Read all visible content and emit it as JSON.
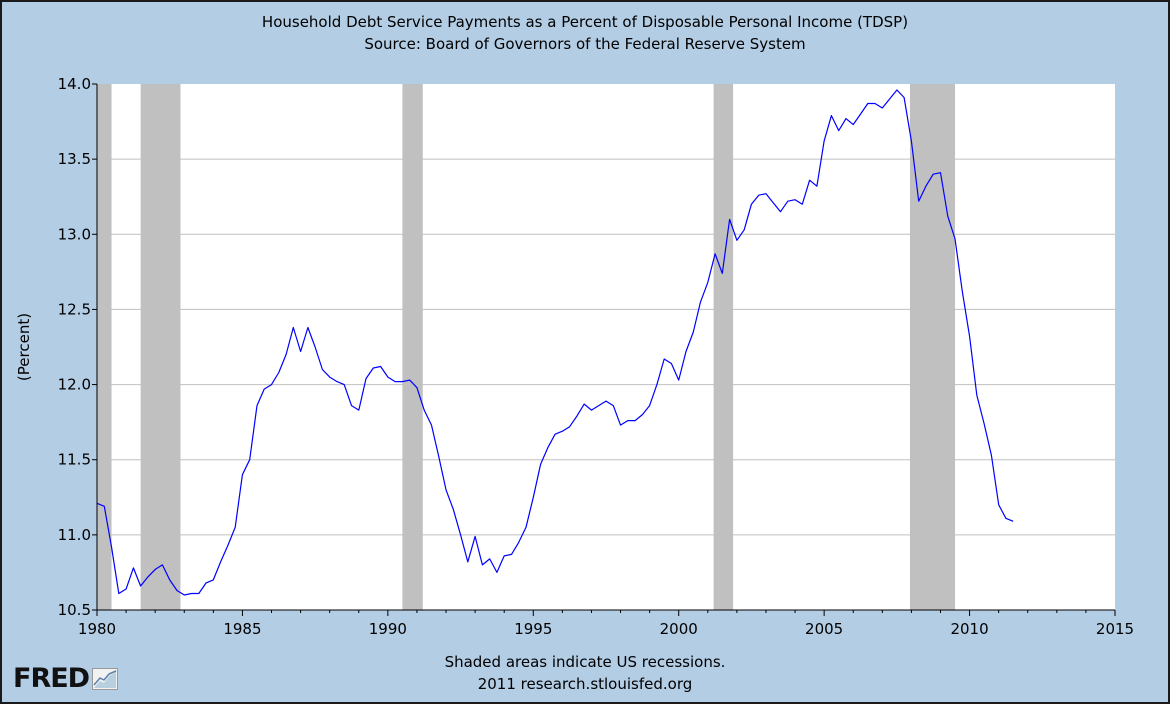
{
  "chart_data": {
    "type": "line",
    "title": "Household Debt Service Payments as a Percent of Disposable Personal Income (TDSP)",
    "subtitle": "Source: Board of Governors of the Federal Reserve System",
    "xlabel": "",
    "ylabel": "(Percent)",
    "xlim": [
      1980,
      2015
    ],
    "ylim": [
      10.5,
      14.0
    ],
    "x_ticks": [
      "1980",
      "1985",
      "1990",
      "1995",
      "2000",
      "2005",
      "2010",
      "2015"
    ],
    "y_ticks": [
      "10.5",
      "11.0",
      "11.5",
      "12.0",
      "12.5",
      "13.0",
      "13.5",
      "14.0"
    ],
    "grid": true,
    "line_color": "#0000ff",
    "grid_color": "#c0c0c0",
    "recession_color": "#c0c0c0",
    "recessions": [
      [
        1980.0,
        1980.5
      ],
      [
        1981.5,
        1982.87
      ],
      [
        1990.5,
        1991.2
      ],
      [
        2001.2,
        2001.87
      ],
      [
        2007.95,
        2009.5
      ]
    ],
    "series": [
      {
        "name": "TDSP",
        "x": [
          1980.0,
          1980.25,
          1980.5,
          1980.75,
          1981.0,
          1981.25,
          1981.5,
          1981.75,
          1982.0,
          1982.25,
          1982.5,
          1982.75,
          1983.0,
          1983.25,
          1983.5,
          1983.75,
          1984.0,
          1984.25,
          1984.5,
          1984.75,
          1985.0,
          1985.25,
          1985.5,
          1985.75,
          1986.0,
          1986.25,
          1986.5,
          1986.75,
          1987.0,
          1987.25,
          1987.5,
          1987.75,
          1988.0,
          1988.25,
          1988.5,
          1988.75,
          1989.0,
          1989.25,
          1989.5,
          1989.75,
          1990.0,
          1990.25,
          1990.5,
          1990.75,
          1991.0,
          1991.25,
          1991.5,
          1991.75,
          1992.0,
          1992.25,
          1992.5,
          1992.75,
          1993.0,
          1993.25,
          1993.5,
          1993.75,
          1994.0,
          1994.25,
          1994.5,
          1994.75,
          1995.0,
          1995.25,
          1995.5,
          1995.75,
          1996.0,
          1996.25,
          1996.5,
          1996.75,
          1997.0,
          1997.25,
          1997.5,
          1997.75,
          1998.0,
          1998.25,
          1998.5,
          1998.75,
          1999.0,
          1999.25,
          1999.5,
          1999.75,
          2000.0,
          2000.25,
          2000.5,
          2000.75,
          2001.0,
          2001.25,
          2001.5,
          2001.75,
          2002.0,
          2002.25,
          2002.5,
          2002.75,
          2003.0,
          2003.25,
          2003.5,
          2003.75,
          2004.0,
          2004.25,
          2004.5,
          2004.75,
          2005.0,
          2005.25,
          2005.5,
          2005.75,
          2006.0,
          2006.25,
          2006.5,
          2006.75,
          2007.0,
          2007.25,
          2007.5,
          2007.75,
          2008.0,
          2008.25,
          2008.5,
          2008.75,
          2009.0,
          2009.25,
          2009.5,
          2009.75,
          2010.0,
          2010.25,
          2010.5,
          2010.75,
          2011.0,
          2011.25,
          2011.5
        ],
        "values": [
          11.21,
          11.19,
          10.92,
          10.61,
          10.64,
          10.78,
          10.66,
          10.72,
          10.77,
          10.8,
          10.7,
          10.63,
          10.6,
          10.61,
          10.61,
          10.68,
          10.7,
          10.82,
          10.93,
          11.05,
          11.4,
          11.5,
          11.86,
          11.97,
          12.0,
          12.08,
          12.2,
          12.38,
          12.22,
          12.38,
          12.25,
          12.1,
          12.05,
          12.02,
          12.0,
          11.86,
          11.83,
          12.04,
          12.11,
          12.12,
          12.05,
          12.02,
          12.02,
          12.03,
          11.98,
          11.83,
          11.73,
          11.52,
          11.3,
          11.17,
          11.0,
          10.82,
          10.99,
          10.8,
          10.84,
          10.75,
          10.86,
          10.87,
          10.95,
          11.05,
          11.25,
          11.47,
          11.58,
          11.67,
          11.69,
          11.72,
          11.79,
          11.87,
          11.83,
          11.86,
          11.89,
          11.86,
          11.73,
          11.76,
          11.76,
          11.8,
          11.86,
          12.0,
          12.17,
          12.14,
          12.03,
          12.22,
          12.35,
          12.55,
          12.68,
          12.87,
          12.74,
          13.1,
          12.96,
          13.03,
          13.2,
          13.26,
          13.27,
          13.21,
          13.15,
          13.22,
          13.23,
          13.2,
          13.36,
          13.32,
          13.62,
          13.79,
          13.69,
          13.77,
          13.73,
          13.8,
          13.87,
          13.87,
          13.84,
          13.9,
          13.96,
          13.91,
          13.62,
          13.22,
          13.32,
          13.4,
          13.41,
          13.12,
          12.97,
          12.62,
          12.32,
          11.93,
          11.74,
          11.53,
          11.2,
          11.11,
          11.09
        ]
      }
    ]
  },
  "footer": {
    "note": "Shaded areas indicate US recessions.",
    "credit": "2011 research.stlouisfed.org",
    "logo_text": "FRED"
  },
  "icons": {
    "logo_graph": "fred-graph-icon"
  }
}
